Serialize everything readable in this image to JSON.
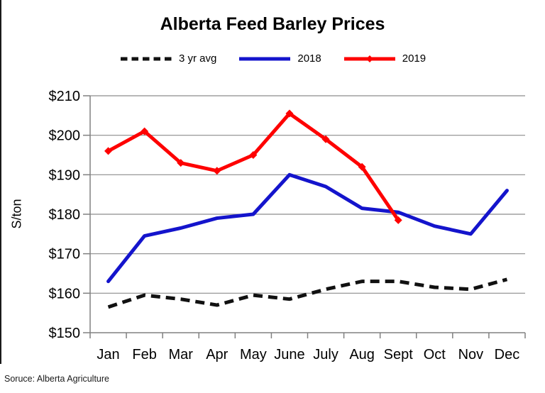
{
  "window": {
    "source_note": "Soruce: Alberta Agriculture"
  },
  "chart_data": {
    "type": "line",
    "title": "Alberta Feed Barley Prices",
    "xlabel": "",
    "ylabel": "S/ton",
    "grid": true,
    "legend_position": "top",
    "ylim": [
      150,
      210
    ],
    "y_tick_values": [
      150,
      160,
      170,
      180,
      190,
      200,
      210
    ],
    "y_tick_labels": [
      "$150",
      "$160",
      "$170",
      "$180",
      "$190",
      "$200",
      "$210"
    ],
    "categories": [
      "Jan",
      "Feb",
      "Mar",
      "Apr",
      "May",
      "June",
      "July",
      "Aug",
      "Sept",
      "Oct",
      "Nov",
      "Dec"
    ],
    "series": [
      {
        "name": "3 yr avg",
        "color": "#111111",
        "line_style": "dashed",
        "marker": "none",
        "values": [
          156.5,
          159.5,
          158.5,
          157,
          159.5,
          158.5,
          161,
          163,
          163,
          161.5,
          161,
          163.5
        ]
      },
      {
        "name": "2018",
        "color": "#1414CC",
        "line_style": "solid",
        "marker": "none",
        "values": [
          163,
          174.5,
          176.5,
          179,
          180,
          190,
          187,
          181.5,
          180.5,
          177,
          175,
          186
        ]
      },
      {
        "name": "2019",
        "color": "#FE0000",
        "line_style": "solid",
        "marker": "diamond",
        "values": [
          196,
          201,
          193,
          191,
          195,
          205.5,
          199,
          192,
          178.5,
          null,
          null,
          null
        ]
      }
    ],
    "style_colors": {
      "gridline": "#8C8C8C",
      "axis": "#808080"
    }
  }
}
